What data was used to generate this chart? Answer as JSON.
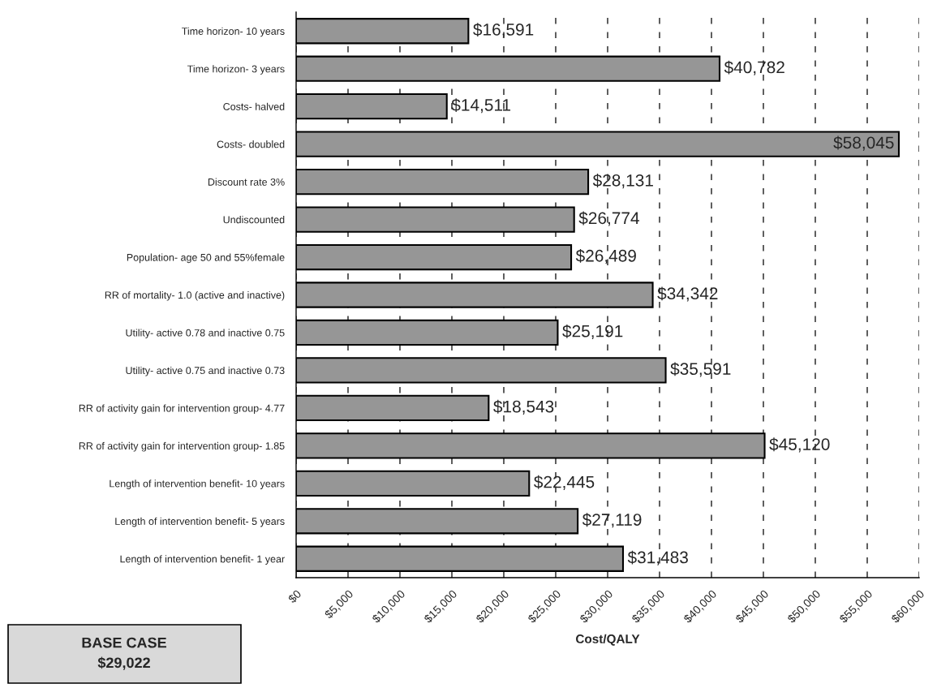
{
  "chart_data": {
    "type": "bar",
    "orientation": "horizontal",
    "xlabel": "Cost/QALY",
    "categories": [
      "Time horizon- 10 years",
      "Time horizon- 3 years",
      "Costs- halved",
      "Costs- doubled",
      "Discount rate 3%",
      "Undiscounted",
      "Population- age 50 and 55%female",
      "RR of mortality- 1.0 (active and inactive)",
      "Utility- active 0.78 and inactive 0.75",
      "Utility- active 0.75 and inactive 0.73",
      "RR of activity gain for intervention group- 4.77",
      "RR of activity gain for intervention group- 1.85",
      "Length of intervention benefit- 10 years",
      "Length of intervention benefit- 5 years",
      "Length of intervention benefit- 1 year"
    ],
    "values": [
      16591,
      40782,
      14511,
      58045,
      28131,
      26774,
      26489,
      34342,
      25191,
      35591,
      18543,
      45120,
      22445,
      27119,
      31483
    ],
    "value_labels": [
      "$16,591",
      "$40,782",
      "$14,511",
      "$58,045",
      "$28,131",
      "$26,774",
      "$26,489",
      "$34,342",
      "$25,191",
      "$35,591",
      "$18,543",
      "$45,120",
      "$22,445",
      "$27,119",
      "$31,483"
    ],
    "color": "#969696",
    "xlim": [
      0,
      60000
    ],
    "xticks": [
      {
        "value": 0,
        "label": "$0"
      },
      {
        "value": 5000,
        "label": "$5,000"
      },
      {
        "value": 10000,
        "label": "$10,000"
      },
      {
        "value": 15000,
        "label": "$15,000"
      },
      {
        "value": 20000,
        "label": "$20,000"
      },
      {
        "value": 25000,
        "label": "$25,000"
      },
      {
        "value": 30000,
        "label": "$30,000"
      },
      {
        "value": 35000,
        "label": "$35,000"
      },
      {
        "value": 40000,
        "label": "$40,000"
      },
      {
        "value": 45000,
        "label": "$45,000"
      },
      {
        "value": 50000,
        "label": "$50,000"
      },
      {
        "value": 55000,
        "label": "$55,000"
      },
      {
        "value": 60000,
        "label": "$60,000"
      }
    ],
    "grid": "x",
    "annotations": [
      "BASE CASE\n$29,022"
    ]
  }
}
